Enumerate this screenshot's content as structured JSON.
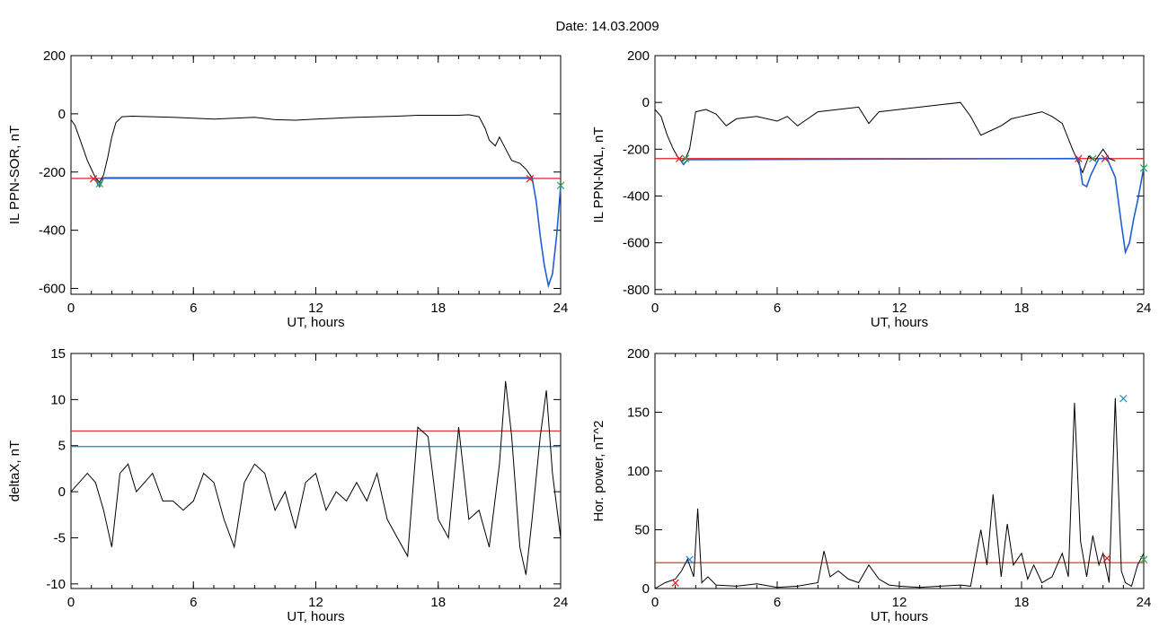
{
  "figure": {
    "title": "Date:  14.03.2009"
  },
  "chart_data": [
    {
      "type": "line",
      "ylabel": "IL PPN-SOR, nT",
      "xlabel": "UT, hours",
      "xlim": [
        0,
        24
      ],
      "ylim": [
        -620,
        200
      ],
      "xticks": [
        "0",
        "6",
        "12",
        "18",
        "24"
      ],
      "yticks": [
        "200",
        "0",
        "-200",
        "-400",
        "-600"
      ],
      "series": [
        {
          "color": "#000000",
          "x": [
            0,
            0.2,
            0.5,
            0.8,
            1.0,
            1.2,
            1.4,
            1.6,
            1.8,
            2.0,
            2.2,
            2.5,
            3,
            4,
            5,
            6,
            7,
            8,
            9,
            10,
            11,
            12,
            13,
            14,
            15,
            16,
            17,
            18,
            19,
            19.5,
            20,
            20.3,
            20.5,
            20.8,
            21,
            21.3,
            21.6,
            22,
            22.3,
            22.6
          ],
          "y": [
            -20,
            -40,
            -100,
            -160,
            -190,
            -220,
            -235,
            -210,
            -150,
            -80,
            -30,
            -10,
            -8,
            -10,
            -12,
            -15,
            -18,
            -15,
            -12,
            -20,
            -22,
            -18,
            -15,
            -12,
            -10,
            -8,
            -5,
            -5,
            -5,
            -3,
            -10,
            -50,
            -90,
            -110,
            -80,
            -120,
            -160,
            -170,
            -190,
            -220
          ]
        },
        {
          "color": "#1f5fd0",
          "x": [
            1.2,
            1.3,
            1.4,
            1.5,
            1.6,
            22.6,
            22.8,
            23,
            23.2,
            23.4,
            23.6,
            23.8,
            24
          ],
          "y": [
            -220,
            -240,
            -250,
            -235,
            -220,
            -220,
            -300,
            -420,
            -520,
            -590,
            -550,
            -420,
            -250
          ]
        }
      ],
      "threshold": {
        "value": -222,
        "color": "#e02020"
      },
      "markers": [
        {
          "x": 1.1,
          "y": -222,
          "symbol": "×",
          "color": "#e02020"
        },
        {
          "x": 1.4,
          "y": -240,
          "symbol": "×",
          "color": "#2aa84a"
        },
        {
          "x": 22.5,
          "y": -222,
          "symbol": "×",
          "color": "#e02020"
        },
        {
          "x": 24,
          "y": -245,
          "symbol": "×",
          "color": "#2aa84a"
        }
      ]
    },
    {
      "type": "line",
      "ylabel": "IL PPN-NAL, nT",
      "xlabel": "UT, hours",
      "xlim": [
        0,
        24
      ],
      "ylim": [
        -820,
        200
      ],
      "xticks": [
        "0",
        "6",
        "12",
        "18",
        "24"
      ],
      "yticks": [
        "200",
        "0",
        "-200",
        "-400",
        "-600",
        "-800"
      ],
      "series": [
        {
          "color": "#000000",
          "x": [
            0,
            0.3,
            0.6,
            0.9,
            1.1,
            1.3,
            1.5,
            1.7,
            2,
            2.5,
            3,
            3.5,
            4,
            5,
            6,
            6.5,
            7,
            8,
            9,
            10,
            10.5,
            11,
            12,
            13,
            14,
            15,
            15.5,
            16,
            16.5,
            17,
            17.5,
            18,
            19,
            19.5,
            20,
            20.5,
            21,
            21.3,
            21.6,
            22,
            22.3,
            22.6
          ],
          "y": [
            -30,
            -60,
            -140,
            -200,
            -230,
            -250,
            -240,
            -200,
            -40,
            -30,
            -50,
            -100,
            -70,
            -60,
            -80,
            -60,
            -100,
            -40,
            -30,
            -20,
            -90,
            -40,
            -30,
            -20,
            -10,
            0,
            -60,
            -140,
            -120,
            -100,
            -70,
            -60,
            -40,
            -60,
            -90,
            -200,
            -300,
            -230,
            -250,
            -200,
            -240,
            -250
          ]
        },
        {
          "color": "#1f5fd0",
          "x": [
            1.2,
            1.4,
            1.6,
            20.8,
            21,
            21.2,
            21.4,
            21.8,
            22.2,
            22.6,
            22.9,
            23.1,
            23.3,
            23.5,
            23.7,
            24
          ],
          "y": [
            -240,
            -265,
            -245,
            -240,
            -350,
            -360,
            -310,
            -240,
            -240,
            -320,
            -520,
            -640,
            -600,
            -500,
            -420,
            -280
          ]
        }
      ],
      "threshold": {
        "value": -240,
        "color": "#e02020"
      },
      "markers": [
        {
          "x": 1.2,
          "y": -240,
          "symbol": "×",
          "color": "#e02020"
        },
        {
          "x": 1.5,
          "y": -240,
          "symbol": "×",
          "color": "#2aa84a"
        },
        {
          "x": 20.8,
          "y": -240,
          "symbol": "×",
          "color": "#e02020"
        },
        {
          "x": 21.5,
          "y": -240,
          "symbol": "×",
          "color": "#2aa84a"
        },
        {
          "x": 22.1,
          "y": -240,
          "symbol": "×",
          "color": "#e02020"
        },
        {
          "x": 24,
          "y": -280,
          "symbol": "×",
          "color": "#2aa84a"
        }
      ]
    },
    {
      "type": "line",
      "ylabel": "deltaX, nT",
      "xlabel": "UT, hours",
      "xlim": [
        0,
        24
      ],
      "ylim": [
        -10.5,
        15
      ],
      "xticks": [
        "0",
        "6",
        "12",
        "18",
        "24"
      ],
      "yticks": [
        "15",
        "10",
        "5",
        "0",
        "-5",
        "-10"
      ],
      "series": [
        {
          "color": "#000000",
          "x": [
            0,
            0.4,
            0.8,
            1.2,
            1.6,
            2,
            2.4,
            2.8,
            3.2,
            3.6,
            4,
            4.5,
            5,
            5.5,
            6,
            6.5,
            7,
            7.5,
            8,
            8.5,
            9,
            9.5,
            10,
            10.5,
            11,
            11.5,
            12,
            12.5,
            13,
            13.5,
            14,
            14.5,
            15,
            15.5,
            16,
            16.5,
            17,
            17.5,
            18,
            18.5,
            19,
            19.5,
            20,
            20.5,
            21,
            21.3,
            21.6,
            22,
            22.3,
            22.6,
            23,
            23.3,
            23.6,
            24
          ],
          "y": [
            0,
            1,
            2,
            1,
            -2,
            -6,
            2,
            3,
            0,
            1,
            2,
            -1,
            -1,
            -2,
            -1,
            2,
            1,
            -3,
            -6,
            1,
            3,
            2,
            -2,
            0,
            -4,
            1,
            2,
            -2,
            0,
            -1,
            1,
            -1,
            2,
            -3,
            -5,
            -7,
            7,
            6,
            -3,
            -5,
            7,
            -3,
            -2,
            -6,
            3,
            12,
            6,
            -6,
            -9,
            -3,
            6,
            11,
            2,
            -5
          ]
        }
      ],
      "thresholds": [
        {
          "value": 6.6,
          "color": "#e02020"
        },
        {
          "value": 4.9,
          "color": "#1a8aa8"
        }
      ]
    },
    {
      "type": "line",
      "ylabel": "Hor. power, nT^2",
      "xlabel": "UT, hours",
      "xlim": [
        0,
        24
      ],
      "ylim": [
        0,
        200
      ],
      "xticks": [
        "0",
        "6",
        "12",
        "18",
        "24"
      ],
      "yticks": [
        "200",
        "150",
        "100",
        "50",
        "0"
      ],
      "series": [
        {
          "color": "#000000",
          "x": [
            0,
            0.5,
            1,
            1.3,
            1.6,
            1.9,
            2.1,
            2.3,
            2.6,
            3,
            4,
            5,
            6,
            7,
            8,
            8.3,
            8.6,
            9,
            9.5,
            10,
            10.5,
            11,
            11.5,
            12,
            13,
            14,
            15,
            15.5,
            16,
            16.3,
            16.6,
            17,
            17.3,
            17.6,
            18,
            18.3,
            18.6,
            19,
            19.5,
            20,
            20.3,
            20.6,
            20.9,
            21.2,
            21.5,
            21.8,
            22,
            22.3,
            22.6,
            22.9,
            23.1,
            23.4,
            23.7,
            24
          ],
          "y": [
            0,
            5,
            8,
            15,
            25,
            10,
            68,
            5,
            10,
            3,
            2,
            4,
            1,
            2,
            5,
            32,
            10,
            15,
            8,
            5,
            20,
            8,
            3,
            2,
            1,
            2,
            3,
            2,
            50,
            20,
            80,
            10,
            55,
            20,
            30,
            8,
            20,
            5,
            10,
            30,
            10,
            158,
            40,
            10,
            45,
            20,
            30,
            5,
            162,
            15,
            5,
            2,
            20,
            30
          ]
        }
      ],
      "threshold": {
        "value": 22,
        "color": "#e02020"
      },
      "markers": [
        {
          "x": 1.0,
          "y": 5,
          "symbol": "×",
          "color": "#e02020"
        },
        {
          "x": 1.7,
          "y": 25,
          "symbol": "×",
          "color": "#1f8fd0"
        },
        {
          "x": 22.2,
          "y": 26,
          "symbol": "×",
          "color": "#e02020"
        },
        {
          "x": 23.0,
          "y": 162,
          "symbol": "×",
          "color": "#1f8fd0"
        },
        {
          "x": 24,
          "y": 25,
          "symbol": "×",
          "color": "#2aa84a"
        }
      ]
    }
  ]
}
